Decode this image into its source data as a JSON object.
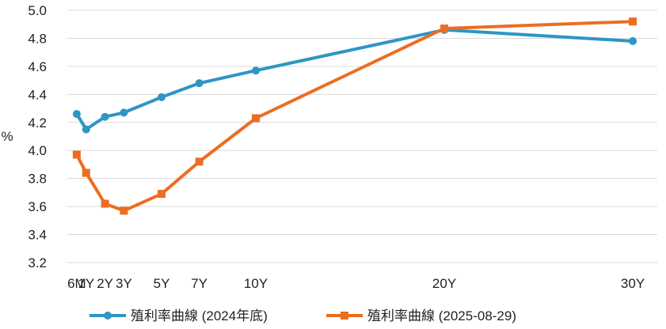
{
  "chart_data": {
    "type": "line",
    "categories": [
      "6M",
      "1Y",
      "2Y",
      "3Y",
      "5Y",
      "7Y",
      "10Y",
      "20Y",
      "30Y"
    ],
    "x": [
      0.5,
      1,
      2,
      3,
      5,
      7,
      10,
      20,
      30
    ],
    "ylabel": "%",
    "ylim": [
      3.2,
      5.0
    ],
    "yticks": [
      "3.2",
      "3.4",
      "3.6",
      "3.8",
      "4.0",
      "4.2",
      "4.4",
      "4.6",
      "4.8",
      "5.0"
    ],
    "grid": true,
    "legend_position": "bottom",
    "series": [
      {
        "name": "殖利率曲線 (2024年底)",
        "color": "#2e95c6",
        "marker": "circle",
        "values": [
          4.26,
          4.15,
          4.24,
          4.27,
          4.38,
          4.48,
          4.57,
          4.86,
          4.78
        ]
      },
      {
        "name": "殖利率曲線 (2025-08-29)",
        "color": "#ec6d22",
        "marker": "square",
        "values": [
          3.97,
          3.84,
          3.62,
          3.57,
          3.69,
          3.92,
          4.23,
          4.87,
          4.92
        ]
      }
    ]
  }
}
